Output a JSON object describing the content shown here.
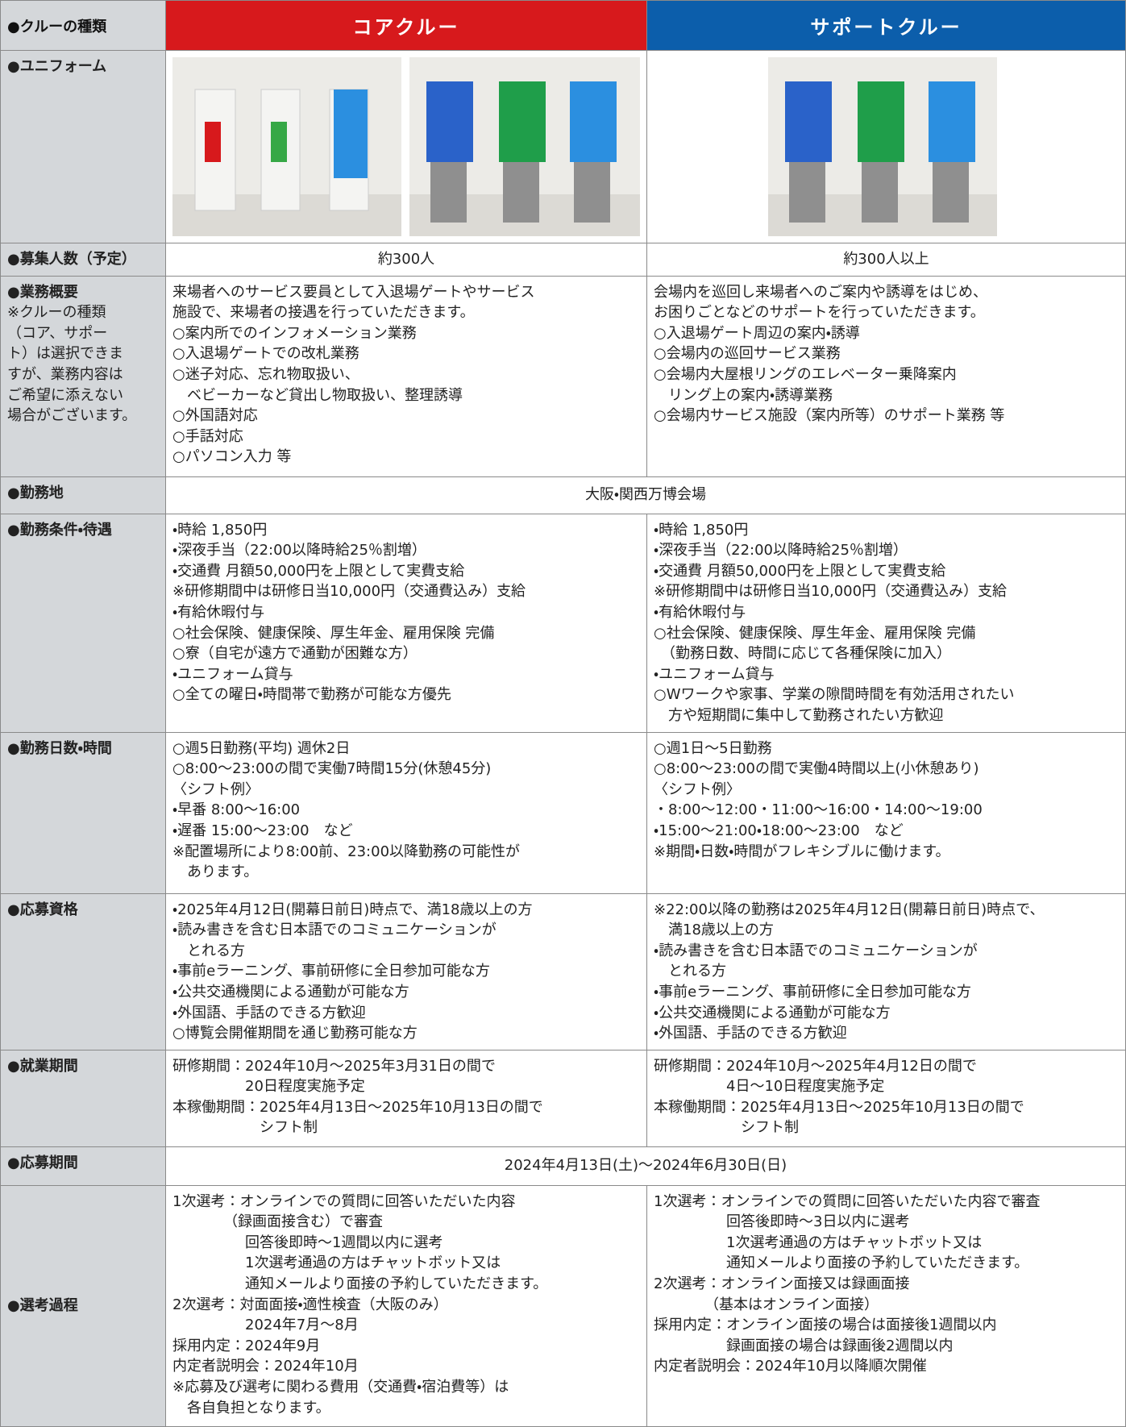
{
  "header": {
    "label": "●クルーの種類",
    "core": "コアクルー",
    "support": "サポートクルー"
  },
  "uniform": {
    "label": "●ユニフォーム"
  },
  "rows": [
    {
      "label": [
        "●募集人数（予定）"
      ],
      "core": [
        "約300人"
      ],
      "support": [
        "約300人以上"
      ]
    },
    {
      "label": [
        "●業務概要",
        "※クルーの種類",
        "（コア、サポー",
        "ト）は選択できま",
        "すが、業務内容は",
        "ご希望に添えない",
        "場合がございます。"
      ],
      "core": [
        "来場者へのサービス要員として入退場ゲートやサービス",
        "施設で、来場者の接遇を行っていただきます。",
        "○案内所でのインフォメーション業務",
        "○入退場ゲートでの改札業務",
        "○迷子対応、忘れ物取扱い、",
        "　ベビーカーなど貸出し物取扱い、整理誘導",
        "○外国語対応",
        "○手話対応",
        "○パソコン入力 等"
      ],
      "support": [
        "会場内を巡回し来場者へのご案内や誘導をはじめ、",
        "お困りごとなどのサポートを行っていただきます。",
        "○入退場ゲート周辺の案内・誘導",
        "○会場内の巡回サービス業務",
        "○会場内大屋根リングのエレベーター乗降案内",
        "　リング上の案内・誘導業務",
        "○会場内サービス施設（案内所等）のサポート業務 等"
      ]
    },
    {
      "label": [
        "●勤務地"
      ],
      "both": [
        "大阪・関西万博会場"
      ]
    },
    {
      "label": [
        "●勤務条件・待遇"
      ],
      "core": [
        "・時給 1,850円",
        "・深夜手当（22:00以降時給25％割増）",
        "・交通費 月額50,000円を上限として実費支給",
        "※研修期間中は研修日当10,000円（交通費込み）支給",
        "・有給休暇付与",
        "○社会保険、健康保険、厚生年金、雇用保険 完備",
        "○寮（自宅が遠方で通勤が困難な方）",
        "・ユニフォーム貸与",
        "○全ての曜日・時間帯で勤務が可能な方優先"
      ],
      "support": [
        "・時給 1,850円",
        "・深夜手当（22:00以降時給25％割増）",
        "・交通費 月額50,000円を上限として実費支給",
        "※研修期間中は研修日当10,000円（交通費込み）支給",
        "・有給休暇付与",
        "○社会保険、健康保険、厚生年金、雇用保険 完備",
        "　（勤務日数、時間に応じて各種保険に加入）",
        "・ユニフォーム貸与",
        "○Wワークや家事、学業の隙間時間を有効活用されたい",
        "　方や短期間に集中して勤務されたい方歓迎"
      ]
    },
    {
      "label": [
        "●勤務日数・時間"
      ],
      "core": [
        "○週5日勤務(平均) 週休2日",
        "○8:00～23:00の間で実働7時間15分(休憩45分)",
        "〈シフト例〉",
        "・早番 8:00～16:00",
        "・遅番 15:00～23:00　など",
        "※配置場所により8:00前、23:00以降勤務の可能性が",
        "　あります。"
      ],
      "support": [
        "○週1日～5日勤務",
        "○8:00～23:00の間で実働4時間以上(小休憩あり)",
        "〈シフト例〉",
        "・8:00～12:00・11:00～16:00・14:00～19:00",
        "・15:00～21:00・18:00～23:00　など",
        "※期間・日数・時間がフレキシブルに働けます。"
      ]
    },
    {
      "label": [
        "●応募資格"
      ],
      "core": [
        "・2025年4月12日(開幕日前日)時点で、満18歳以上の方",
        "・読み書きを含む日本語でのコミュニケーションが",
        "　とれる方",
        "・事前eラーニング、事前研修に全日参加可能な方",
        "・公共交通機関による通勤が可能な方",
        "・外国語、手話のできる方歓迎",
        "○博覧会開催期間を通じ勤務可能な方"
      ],
      "support": [
        "※22:00以降の勤務は2025年4月12日(開幕日前日)時点で、",
        "　満18歳以上の方",
        "・読み書きを含む日本語でのコミュニケーションが",
        "　とれる方",
        "・事前eラーニング、事前研修に全日参加可能な方",
        "・公共交通機関による通勤が可能な方",
        "・外国語、手話のできる方歓迎"
      ]
    },
    {
      "label": [
        "●就業期間"
      ],
      "core": [
        "研修期間：2024年10月～2025年3月31日の間で",
        "　　　　　20日程度実施予定",
        "本稼働期間：2025年4月13日～2025年10月13日の間で",
        "　　　　　　シフト制"
      ],
      "support": [
        "研修期間：2024年10月～2025年4月12日の間で",
        "　　　　　4日～10日程度実施予定",
        "本稼働期間：2025年4月13日～2025年10月13日の間で",
        "　　　　　　シフト制"
      ]
    },
    {
      "label": [
        "●応募期間"
      ],
      "both": [
        "2024年4月13日(土)～2024年6月30日(日)"
      ]
    },
    {
      "label": [
        "●選考過程"
      ],
      "core": [
        "1次選考：オンラインでの質問に回答いただいた内容",
        "　　　　（録画面接含む）で審査",
        "　　　　　回答後即時～1週間以内に選考",
        "　　　　　1次選考通過の方はチャットボット又は",
        "　　　　　通知メールより面接の予約していただきます。",
        "2次選考：対面面接・適性検査（大阪のみ）",
        "　　　　　2024年7月～8月",
        "採用内定：2024年9月",
        "内定者説明会：2024年10月",
        "※応募及び選考に関わる費用（交通費・宿泊費等）は",
        "　各自負担となります。"
      ],
      "support": [
        "1次選考：オンラインでの質問に回答いただいた内容で審査",
        "　　　　　回答後即時～3日以内に選考",
        "　　　　　1次選考通過の方はチャットボット又は",
        "　　　　　通知メールより面接の予約していただきます。",
        "2次選考：オンライン面接又は録画面接",
        "　　　　（基本はオンライン面接）",
        "採用内定：オンライン面接の場合は面接後1週間以内",
        "　　　　　録画面接の場合は録画後2週間以内",
        "内定者説明会：2024年10月以降順次開催"
      ]
    }
  ]
}
